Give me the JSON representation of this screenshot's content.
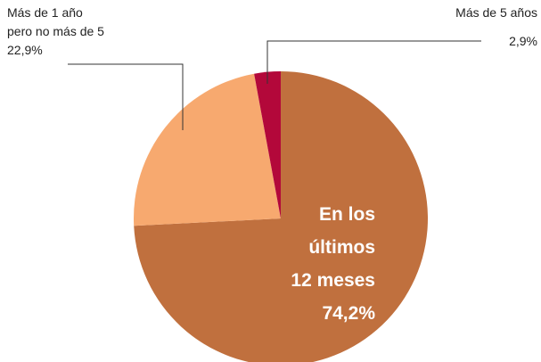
{
  "chart_data": {
    "type": "pie",
    "categories": [
      "En los\núltimos\n12 meses",
      "Más de 1 año\npero no más de 5",
      "Más de 5 años"
    ],
    "values": [
      74.2,
      22.9,
      2.9
    ],
    "value_labels": [
      "74,2%",
      "22,9%",
      "2,9%"
    ],
    "colors": [
      "#c0703e",
      "#f7a96f",
      "#b3083a"
    ]
  }
}
